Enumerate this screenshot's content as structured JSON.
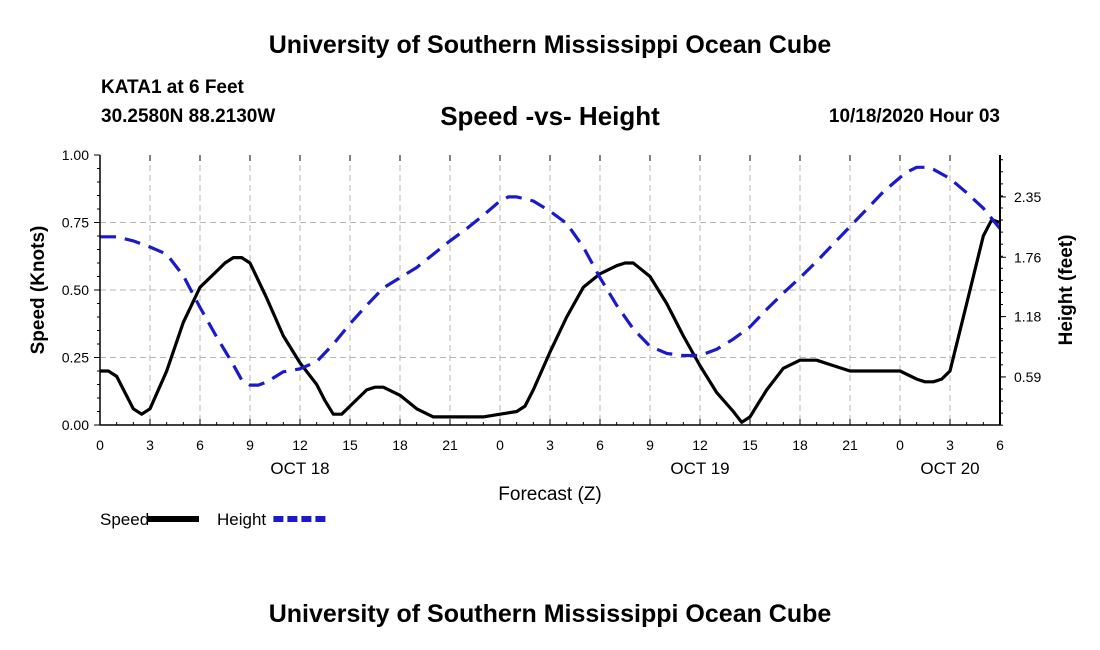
{
  "header": {
    "title": "University of Southern Mississippi Ocean Cube",
    "station": "KATA1 at 6 Feet",
    "location": "30.2580N 88.2130W",
    "datetime": "10/18/2020 Hour 03"
  },
  "footer": {
    "title": "University of Southern Mississippi Ocean Cube"
  },
  "chart_data": {
    "type": "line",
    "title": "Speed -vs- Height",
    "xlabel": "Forecast (Z)",
    "ylabel": "Speed (Knots)",
    "y2label": "Height (feet)",
    "xlim": [
      0,
      54
    ],
    "ylim": [
      0,
      1.0
    ],
    "y2lim": [
      0.12,
      2.76
    ],
    "grid": true,
    "x_ticks": [
      0,
      3,
      6,
      9,
      12,
      15,
      18,
      21,
      24,
      27,
      30,
      33,
      36,
      39,
      42,
      45,
      48,
      51,
      54
    ],
    "x_tick_labels": [
      "0",
      "3",
      "6",
      "9",
      "12",
      "15",
      "18",
      "21",
      "0",
      "3",
      "6",
      "9",
      "12",
      "15",
      "18",
      "21",
      "0",
      "3",
      "6"
    ],
    "y_ticks": [
      0,
      0.25,
      0.5,
      0.75,
      1.0
    ],
    "y_tick_labels": [
      "0.00",
      "0.25",
      "0.50",
      "0.75",
      "1.00"
    ],
    "y2_ticks": [
      0.59,
      1.18,
      1.76,
      2.35
    ],
    "y2_tick_labels": [
      "0.59",
      "1.18",
      "1.76",
      "2.35"
    ],
    "date_labels": [
      {
        "x": 12,
        "label": "OCT 18"
      },
      {
        "x": 36,
        "label": "OCT 19"
      },
      {
        "x": 51,
        "label": "OCT 20"
      }
    ],
    "legend_position": "bottom-left",
    "series": [
      {
        "name": "Speed",
        "axis": "left",
        "color": "#000000",
        "dash": "solid",
        "x": [
          0,
          0.5,
          1,
          1.5,
          2,
          2.5,
          3,
          4,
          5,
          6,
          7,
          7.5,
          8,
          8.5,
          9,
          10,
          11,
          12,
          13,
          13.5,
          14,
          14.5,
          15,
          16,
          16.5,
          17,
          18,
          19,
          20,
          21,
          22,
          23,
          24,
          25,
          25.5,
          26,
          27,
          28,
          29,
          30,
          31,
          31.5,
          32,
          33,
          34,
          35,
          36,
          37,
          38,
          38.5,
          39,
          39.5,
          40,
          41,
          42,
          43,
          44,
          45,
          46,
          47,
          48,
          49,
          49.5,
          50,
          50.5,
          51,
          52,
          53,
          53.5,
          54
        ],
        "values": [
          0.2,
          0.2,
          0.18,
          0.12,
          0.06,
          0.04,
          0.06,
          0.2,
          0.38,
          0.51,
          0.57,
          0.6,
          0.62,
          0.62,
          0.6,
          0.47,
          0.33,
          0.23,
          0.15,
          0.09,
          0.04,
          0.04,
          0.07,
          0.13,
          0.14,
          0.14,
          0.11,
          0.06,
          0.03,
          0.03,
          0.03,
          0.03,
          0.04,
          0.05,
          0.07,
          0.13,
          0.27,
          0.4,
          0.51,
          0.56,
          0.59,
          0.6,
          0.6,
          0.55,
          0.45,
          0.33,
          0.22,
          0.12,
          0.05,
          0.01,
          0.03,
          0.08,
          0.13,
          0.21,
          0.24,
          0.24,
          0.22,
          0.2,
          0.2,
          0.2,
          0.2,
          0.17,
          0.16,
          0.16,
          0.17,
          0.2,
          0.45,
          0.7,
          0.76,
          0.75
        ]
      },
      {
        "name": "Height",
        "axis": "right",
        "color": "#1a1acc",
        "dash": "dashed",
        "x": [
          0,
          1,
          2,
          3,
          4,
          5,
          6,
          7,
          8,
          8.5,
          9,
          9.5,
          10,
          11,
          12,
          13,
          14,
          15,
          16,
          17,
          18,
          19,
          20,
          21,
          22,
          23,
          24,
          24.5,
          25,
          26,
          27,
          28,
          29,
          30,
          31,
          32,
          33,
          34,
          35,
          36,
          37,
          38,
          39,
          40,
          41,
          42,
          43,
          44,
          45,
          46,
          47,
          48,
          48.5,
          49,
          49.5,
          50,
          51,
          52,
          53,
          54
        ],
        "values": [
          1.96,
          1.96,
          1.92,
          1.86,
          1.79,
          1.58,
          1.27,
          0.98,
          0.71,
          0.56,
          0.51,
          0.51,
          0.54,
          0.64,
          0.67,
          0.74,
          0.91,
          1.11,
          1.29,
          1.46,
          1.56,
          1.66,
          1.79,
          1.92,
          2.04,
          2.17,
          2.31,
          2.35,
          2.35,
          2.31,
          2.21,
          2.09,
          1.86,
          1.56,
          1.29,
          1.06,
          0.89,
          0.82,
          0.8,
          0.8,
          0.86,
          0.96,
          1.08,
          1.25,
          1.41,
          1.56,
          1.72,
          1.89,
          2.06,
          2.23,
          2.4,
          2.54,
          2.6,
          2.64,
          2.64,
          2.62,
          2.53,
          2.39,
          2.24,
          2.04
        ]
      }
    ]
  }
}
